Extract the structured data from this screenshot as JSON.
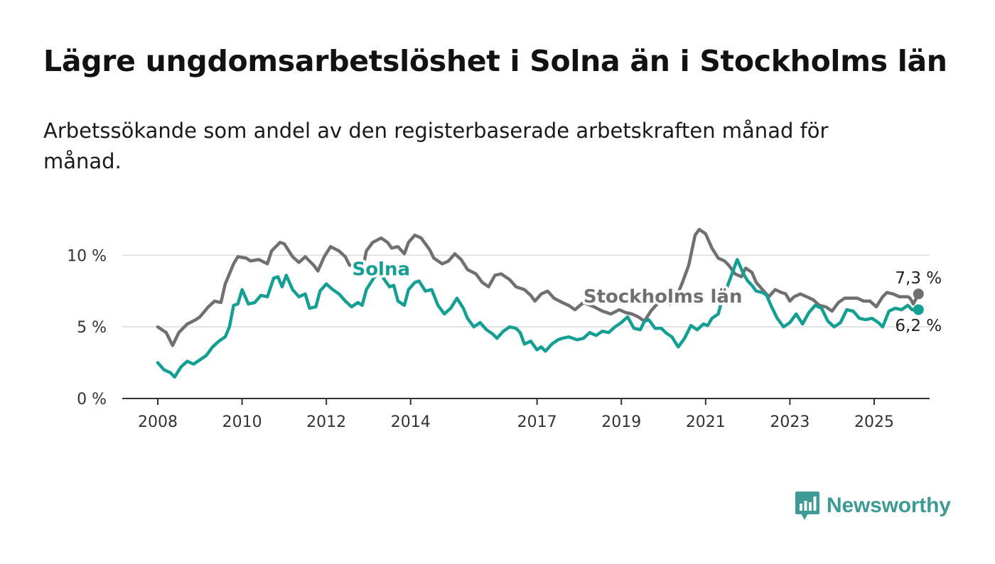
{
  "title": "Lägre ungdomsarbetslöshet i Solna än i Stockholms län",
  "subtitle": "Arbetssökande som andel av den registerbaserade arbetskraften månad för månad.",
  "logo_text": "Newsworthy",
  "colors": {
    "solna": "#159e92",
    "stockholm": "#707073",
    "grid": "#dcdcdc",
    "axis": "#333333"
  },
  "chart_data": {
    "type": "line",
    "xlabel": "",
    "ylabel": "",
    "ylim": [
      0,
      12
    ],
    "xlim": [
      2007.8,
      2025.7
    ],
    "y_ticks": [
      {
        "value": 0,
        "label": "0 %"
      },
      {
        "value": 5,
        "label": "5 %"
      },
      {
        "value": 10,
        "label": "10 %"
      }
    ],
    "x_ticks": [
      {
        "value": 2008,
        "label": "2008"
      },
      {
        "value": 2010,
        "label": "2010"
      },
      {
        "value": 2012,
        "label": "2012"
      },
      {
        "value": 2014,
        "label": "2014"
      },
      {
        "value": 2017,
        "label": "2017"
      },
      {
        "value": 2019,
        "label": "2019"
      },
      {
        "value": 2021,
        "label": "2021"
      },
      {
        "value": 2023,
        "label": "2023"
      },
      {
        "value": 2025,
        "label": "2025"
      }
    ],
    "grid": true,
    "legend": "inline labels",
    "series": [
      {
        "name": "Stockholms län",
        "label_anchor": [
          2018.1,
          6.7
        ],
        "end_label": "7,3 %",
        "points": [
          [
            2008.0,
            5.0
          ],
          [
            2008.2,
            4.6
          ],
          [
            2008.35,
            3.7
          ],
          [
            2008.5,
            4.6
          ],
          [
            2008.7,
            5.2
          ],
          [
            2008.9,
            5.5
          ],
          [
            2009.0,
            5.7
          ],
          [
            2009.2,
            6.4
          ],
          [
            2009.35,
            6.8
          ],
          [
            2009.5,
            6.7
          ],
          [
            2009.6,
            8.0
          ],
          [
            2009.8,
            9.4
          ],
          [
            2009.9,
            9.9
          ],
          [
            2010.1,
            9.8
          ],
          [
            2010.2,
            9.6
          ],
          [
            2010.4,
            9.7
          ],
          [
            2010.6,
            9.4
          ],
          [
            2010.7,
            10.3
          ],
          [
            2010.9,
            10.9
          ],
          [
            2011.0,
            10.8
          ],
          [
            2011.2,
            9.9
          ],
          [
            2011.35,
            9.5
          ],
          [
            2011.5,
            9.9
          ],
          [
            2011.7,
            9.3
          ],
          [
            2011.8,
            8.9
          ],
          [
            2011.95,
            9.9
          ],
          [
            2012.1,
            10.6
          ],
          [
            2012.3,
            10.3
          ],
          [
            2012.45,
            9.9
          ],
          [
            2012.55,
            9.3
          ],
          [
            2012.7,
            9.3
          ],
          [
            2012.85,
            8.9
          ],
          [
            2012.95,
            10.3
          ],
          [
            2013.1,
            10.9
          ],
          [
            2013.3,
            11.2
          ],
          [
            2013.45,
            10.9
          ],
          [
            2013.55,
            10.5
          ],
          [
            2013.7,
            10.6
          ],
          [
            2013.85,
            10.1
          ],
          [
            2013.95,
            10.9
          ],
          [
            2014.1,
            11.4
          ],
          [
            2014.25,
            11.2
          ],
          [
            2014.45,
            10.4
          ],
          [
            2014.55,
            9.8
          ],
          [
            2014.75,
            9.4
          ],
          [
            2014.9,
            9.6
          ],
          [
            2015.05,
            10.1
          ],
          [
            2015.2,
            9.7
          ],
          [
            2015.35,
            9.0
          ],
          [
            2015.55,
            8.7
          ],
          [
            2015.7,
            8.1
          ],
          [
            2015.85,
            7.8
          ],
          [
            2016.0,
            8.6
          ],
          [
            2016.15,
            8.7
          ],
          [
            2016.35,
            8.3
          ],
          [
            2016.5,
            7.8
          ],
          [
            2016.7,
            7.6
          ],
          [
            2016.85,
            7.2
          ],
          [
            2016.95,
            6.8
          ],
          [
            2017.1,
            7.3
          ],
          [
            2017.25,
            7.5
          ],
          [
            2017.4,
            7.0
          ],
          [
            2017.6,
            6.7
          ],
          [
            2017.75,
            6.5
          ],
          [
            2017.9,
            6.2
          ],
          [
            2018.1,
            6.7
          ],
          [
            2018.35,
            6.4
          ],
          [
            2018.55,
            6.1
          ],
          [
            2018.75,
            5.9
          ],
          [
            2018.95,
            6.2
          ],
          [
            2019.1,
            6.0
          ],
          [
            2019.25,
            5.9
          ],
          [
            2019.4,
            5.7
          ],
          [
            2019.55,
            5.4
          ],
          [
            2019.7,
            6.1
          ],
          [
            2019.85,
            6.6
          ],
          [
            2020.0,
            6.9
          ],
          [
            2020.15,
            6.6
          ],
          [
            2020.3,
            7.0
          ],
          [
            2020.45,
            8.1
          ],
          [
            2020.6,
            9.3
          ],
          [
            2020.75,
            11.4
          ],
          [
            2020.85,
            11.8
          ],
          [
            2021.0,
            11.5
          ],
          [
            2021.15,
            10.5
          ],
          [
            2021.3,
            9.8
          ],
          [
            2021.45,
            9.6
          ],
          [
            2021.55,
            9.3
          ],
          [
            2021.7,
            8.7
          ],
          [
            2021.85,
            8.5
          ],
          [
            2021.95,
            9.1
          ],
          [
            2022.1,
            8.8
          ],
          [
            2022.2,
            8.1
          ],
          [
            2022.35,
            7.6
          ],
          [
            2022.5,
            7.1
          ],
          [
            2022.65,
            7.6
          ],
          [
            2022.8,
            7.4
          ],
          [
            2022.9,
            7.3
          ],
          [
            2023.0,
            6.8
          ],
          [
            2023.1,
            7.1
          ],
          [
            2023.25,
            7.3
          ],
          [
            2023.4,
            7.1
          ],
          [
            2023.55,
            6.9
          ],
          [
            2023.7,
            6.5
          ],
          [
            2023.85,
            6.4
          ],
          [
            2024.0,
            6.1
          ],
          [
            2024.15,
            6.7
          ],
          [
            2024.3,
            7.0
          ],
          [
            2024.45,
            7.0
          ],
          [
            2024.6,
            7.0
          ],
          [
            2024.75,
            6.8
          ],
          [
            2024.9,
            6.8
          ],
          [
            2025.05,
            6.4
          ],
          [
            2025.2,
            7.1
          ],
          [
            2025.3,
            7.4
          ],
          [
            2025.45,
            7.3
          ],
          [
            2025.6,
            7.1
          ],
          [
            2025.7,
            7.1
          ],
          [
            2025.8,
            7.1
          ],
          [
            2025.85,
            7.0
          ],
          [
            2025.93,
            6.6
          ],
          [
            2026.05,
            7.3
          ]
        ]
      },
      {
        "name": "Solna",
        "label_anchor": [
          2013.3,
          8.6
        ],
        "end_label": "6,2 %",
        "points": [
          [
            2008.0,
            2.5
          ],
          [
            2008.15,
            2.0
          ],
          [
            2008.3,
            1.8
          ],
          [
            2008.4,
            1.5
          ],
          [
            2008.55,
            2.2
          ],
          [
            2008.7,
            2.6
          ],
          [
            2008.85,
            2.4
          ],
          [
            2009.0,
            2.7
          ],
          [
            2009.15,
            3.0
          ],
          [
            2009.3,
            3.6
          ],
          [
            2009.45,
            4.0
          ],
          [
            2009.6,
            4.3
          ],
          [
            2009.7,
            5.0
          ],
          [
            2009.8,
            6.5
          ],
          [
            2009.9,
            6.6
          ],
          [
            2010.0,
            7.6
          ],
          [
            2010.15,
            6.6
          ],
          [
            2010.3,
            6.7
          ],
          [
            2010.45,
            7.2
          ],
          [
            2010.6,
            7.1
          ],
          [
            2010.75,
            8.4
          ],
          [
            2010.85,
            8.5
          ],
          [
            2010.95,
            7.8
          ],
          [
            2011.05,
            8.6
          ],
          [
            2011.2,
            7.6
          ],
          [
            2011.35,
            7.1
          ],
          [
            2011.5,
            7.3
          ],
          [
            2011.6,
            6.3
          ],
          [
            2011.75,
            6.4
          ],
          [
            2011.85,
            7.5
          ],
          [
            2012.0,
            8.0
          ],
          [
            2012.15,
            7.6
          ],
          [
            2012.3,
            7.3
          ],
          [
            2012.45,
            6.8
          ],
          [
            2012.6,
            6.4
          ],
          [
            2012.75,
            6.7
          ],
          [
            2012.85,
            6.5
          ],
          [
            2012.95,
            7.6
          ],
          [
            2013.1,
            8.3
          ],
          [
            2013.25,
            8.9
          ],
          [
            2013.4,
            8.2
          ],
          [
            2013.5,
            7.8
          ],
          [
            2013.6,
            7.9
          ],
          [
            2013.7,
            6.8
          ],
          [
            2013.85,
            6.5
          ],
          [
            2013.95,
            7.6
          ],
          [
            2014.1,
            8.1
          ],
          [
            2014.2,
            8.2
          ],
          [
            2014.35,
            7.5
          ],
          [
            2014.5,
            7.6
          ],
          [
            2014.65,
            6.5
          ],
          [
            2014.8,
            5.9
          ],
          [
            2014.95,
            6.3
          ],
          [
            2015.1,
            7.0
          ],
          [
            2015.25,
            6.3
          ],
          [
            2015.35,
            5.6
          ],
          [
            2015.5,
            5.0
          ],
          [
            2015.65,
            5.3
          ],
          [
            2015.8,
            4.8
          ],
          [
            2015.95,
            4.5
          ],
          [
            2016.05,
            4.2
          ],
          [
            2016.2,
            4.7
          ],
          [
            2016.35,
            5.0
          ],
          [
            2016.5,
            4.9
          ],
          [
            2016.6,
            4.6
          ],
          [
            2016.7,
            3.8
          ],
          [
            2016.85,
            4.0
          ],
          [
            2017.0,
            3.4
          ],
          [
            2017.1,
            3.6
          ],
          [
            2017.2,
            3.3
          ],
          [
            2017.35,
            3.8
          ],
          [
            2017.5,
            4.1
          ],
          [
            2017.6,
            4.2
          ],
          [
            2017.75,
            4.3
          ],
          [
            2017.85,
            4.2
          ],
          [
            2017.95,
            4.1
          ],
          [
            2018.1,
            4.2
          ],
          [
            2018.25,
            4.6
          ],
          [
            2018.4,
            4.4
          ],
          [
            2018.55,
            4.7
          ],
          [
            2018.7,
            4.6
          ],
          [
            2018.85,
            5.0
          ],
          [
            2019.0,
            5.3
          ],
          [
            2019.15,
            5.7
          ],
          [
            2019.3,
            4.9
          ],
          [
            2019.45,
            4.8
          ],
          [
            2019.55,
            5.4
          ],
          [
            2019.65,
            5.5
          ],
          [
            2019.8,
            4.9
          ],
          [
            2019.95,
            4.9
          ],
          [
            2020.05,
            4.6
          ],
          [
            2020.2,
            4.3
          ],
          [
            2020.35,
            3.6
          ],
          [
            2020.5,
            4.2
          ],
          [
            2020.65,
            5.1
          ],
          [
            2020.8,
            4.8
          ],
          [
            2020.95,
            5.2
          ],
          [
            2021.05,
            5.1
          ],
          [
            2021.15,
            5.6
          ],
          [
            2021.3,
            5.9
          ],
          [
            2021.4,
            7.0
          ],
          [
            2021.5,
            7.7
          ],
          [
            2021.6,
            8.5
          ],
          [
            2021.75,
            9.7
          ],
          [
            2021.9,
            8.7
          ],
          [
            2022.0,
            8.2
          ],
          [
            2022.1,
            7.9
          ],
          [
            2022.2,
            7.5
          ],
          [
            2022.35,
            7.4
          ],
          [
            2022.45,
            7.2
          ],
          [
            2022.55,
            6.5
          ],
          [
            2022.7,
            5.6
          ],
          [
            2022.85,
            5.0
          ],
          [
            2023.0,
            5.3
          ],
          [
            2023.15,
            5.9
          ],
          [
            2023.3,
            5.2
          ],
          [
            2023.45,
            6.0
          ],
          [
            2023.6,
            6.5
          ],
          [
            2023.75,
            6.3
          ],
          [
            2023.9,
            5.4
          ],
          [
            2024.05,
            5.0
          ],
          [
            2024.2,
            5.3
          ],
          [
            2024.35,
            6.2
          ],
          [
            2024.5,
            6.1
          ],
          [
            2024.65,
            5.6
          ],
          [
            2024.8,
            5.5
          ],
          [
            2024.95,
            5.6
          ],
          [
            2025.1,
            5.3
          ],
          [
            2025.2,
            5.0
          ],
          [
            2025.35,
            6.1
          ],
          [
            2025.5,
            6.3
          ],
          [
            2025.65,
            6.2
          ],
          [
            2025.8,
            6.5
          ],
          [
            2025.9,
            6.2
          ],
          [
            2026.05,
            6.2
          ]
        ]
      }
    ]
  }
}
